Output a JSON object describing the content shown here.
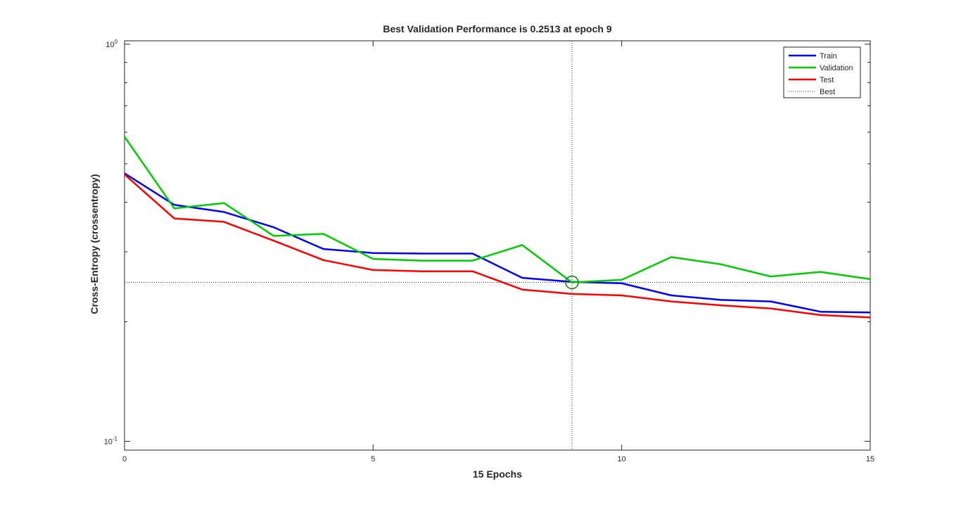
{
  "chart_data": {
    "type": "line",
    "title": "Best Validation Performance is 0.2513 at epoch 9",
    "xlabel": "15 Epochs",
    "ylabel": "Cross-Entropy  (crossentropy)",
    "x": [
      0,
      1,
      2,
      3,
      4,
      5,
      6,
      7,
      8,
      9,
      10,
      11,
      12,
      13,
      14,
      15
    ],
    "xlim": [
      0,
      15
    ],
    "ylim": [
      0.095,
      1.02
    ],
    "yscale": "log",
    "grid": false,
    "legend_position": "top-right",
    "x_ticks": [
      {
        "value": 0,
        "label": "0"
      },
      {
        "value": 5,
        "label": "5"
      },
      {
        "value": 10,
        "label": "10"
      },
      {
        "value": 15,
        "label": "15"
      }
    ],
    "y_ticks": [
      {
        "value": 0.1,
        "base": "10",
        "exp": "-1"
      },
      {
        "value": 1,
        "base": "10",
        "exp": "0"
      }
    ],
    "series": [
      {
        "name": "Train",
        "color": "#0000ff",
        "values": [
          0.473,
          0.394,
          0.378,
          0.346,
          0.305,
          0.298,
          0.297,
          0.297,
          0.258,
          0.252,
          0.25,
          0.233,
          0.227,
          0.225,
          0.212,
          0.211
        ]
      },
      {
        "name": "Validation",
        "color": "#00cc00",
        "values": [
          0.585,
          0.386,
          0.398,
          0.329,
          0.333,
          0.288,
          0.285,
          0.285,
          0.312,
          0.2513,
          0.255,
          0.291,
          0.279,
          0.26,
          0.267,
          0.256
        ]
      },
      {
        "name": "Test",
        "color": "#ff0000",
        "values": [
          0.47,
          0.364,
          0.357,
          0.32,
          0.286,
          0.27,
          0.268,
          0.268,
          0.241,
          0.235,
          0.233,
          0.225,
          0.22,
          0.216,
          0.208,
          0.205
        ]
      }
    ],
    "best": {
      "name": "Best",
      "epoch": 9,
      "value": 0.2513,
      "color": "#008000",
      "line_color": "#333333"
    }
  }
}
